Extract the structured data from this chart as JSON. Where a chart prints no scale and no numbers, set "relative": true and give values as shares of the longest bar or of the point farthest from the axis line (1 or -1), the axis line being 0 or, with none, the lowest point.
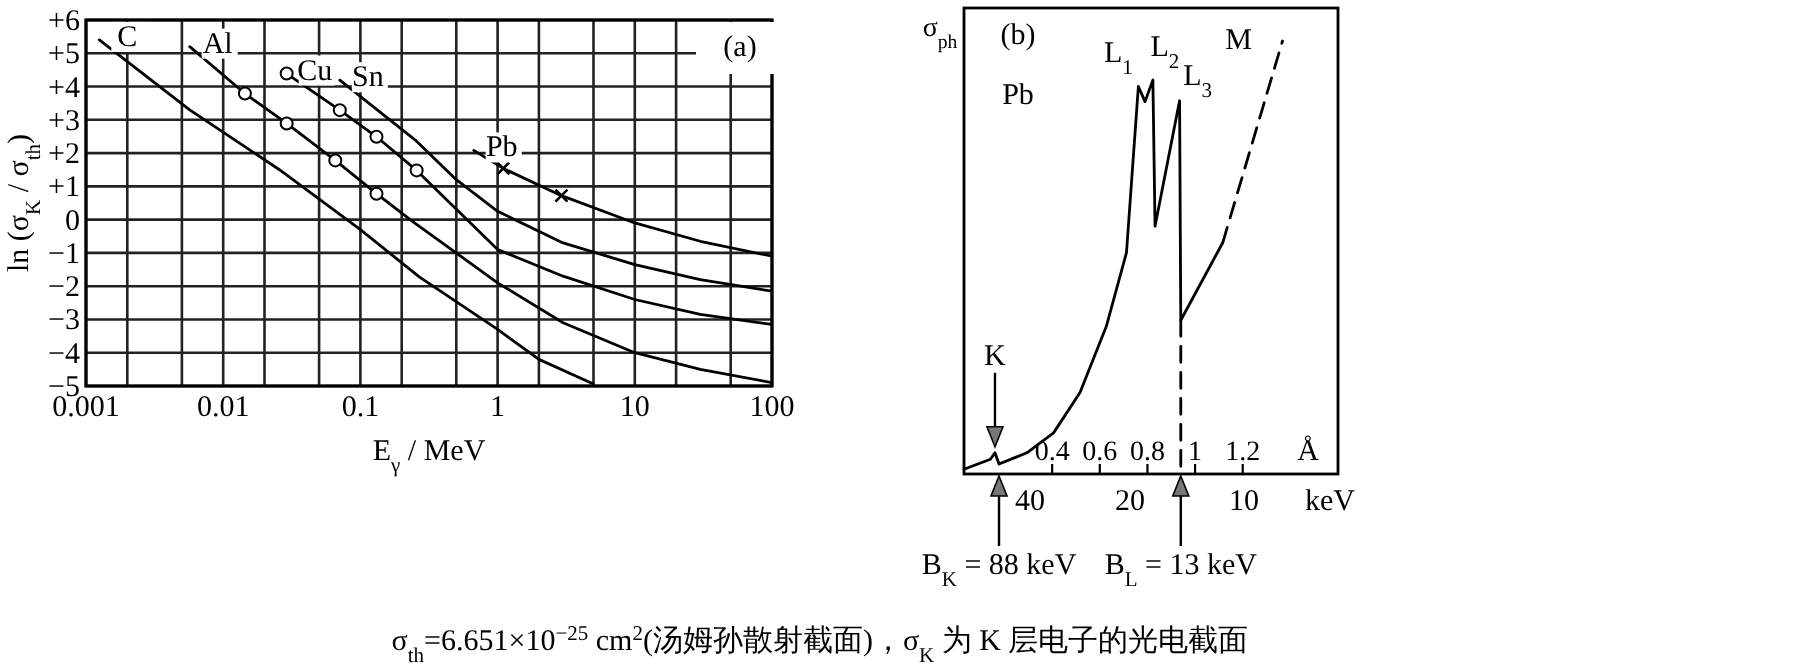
{
  "chart_data": [
    {
      "type": "line",
      "xlabel": "E$_{γ}$ / MeV",
      "ylabel": "ln (σ$_{K}$ / σ$_{th}$)",
      "log": "x",
      "grid": true,
      "xlim": [
        0.001,
        100
      ],
      "ylim": [
        -5,
        6
      ],
      "xticks": [
        0.001,
        {
          "value": 0.002,
          "label": null
        },
        {
          "value": 0.005,
          "label": null
        },
        0.01,
        {
          "value": 0.02,
          "label": null
        },
        {
          "value": 0.05,
          "label": null
        },
        0.1,
        {
          "value": 0.2,
          "label": null
        },
        {
          "value": 0.5,
          "label": null
        },
        1,
        {
          "value": 2,
          "label": null
        },
        {
          "value": 5,
          "label": null
        },
        10,
        {
          "value": 20,
          "label": null
        },
        {
          "value": 50,
          "label": null
        },
        100
      ],
      "yticks": [
        {
          "value": 6,
          "label": "+6"
        },
        {
          "value": 5,
          "label": "+5"
        },
        {
          "value": 4,
          "label": "+4"
        },
        {
          "value": 3,
          "label": "+3"
        },
        {
          "value": 2,
          "label": "+2"
        },
        {
          "value": 1,
          "label": "+1"
        },
        0,
        {
          "value": -1,
          "label": "−1"
        },
        {
          "value": -2,
          "label": "−2"
        },
        {
          "value": -3,
          "label": "−3"
        },
        {
          "value": -4,
          "label": "−4"
        },
        {
          "value": -5,
          "label": "−5"
        }
      ],
      "series": [
        {
          "name": "C",
          "color": "#000000",
          "marker": "none",
          "x": [
            0.00125,
            0.0057,
            0.0257,
            0.1,
            0.27,
            1,
            2,
            5
          ],
          "values": [
            5.4,
            3.3,
            1.5,
            -0.3,
            -1.73,
            -3.3,
            -4.2,
            -4.94
          ]
        },
        {
          "name": "Al",
          "color": "#000000",
          "marker": "none",
          "x": [
            0.0057,
            0.0144,
            0.029,
            0.0656,
            0.131,
            0.245,
            1,
            3,
            10,
            30,
            100
          ],
          "values": [
            5.2,
            3.79,
            2.89,
            1.78,
            0.78,
            -0.08,
            -1.9,
            -3.1,
            -4,
            -4.5,
            -4.9
          ]
        },
        {
          "name": "Cu",
          "color": "#000000",
          "marker": "none",
          "x": [
            0.029,
            0.0708,
            0.131,
            0.257,
            1,
            3,
            10,
            30,
            100
          ],
          "values": [
            4.39,
            3.29,
            2.49,
            1.48,
            -0.9,
            -1.7,
            -2.4,
            -2.85,
            -3.15
          ]
        },
        {
          "name": "Sn",
          "color": "#000000",
          "marker": "none",
          "x": [
            0.0708,
            0.25,
            0.5,
            1,
            3,
            10,
            30,
            100
          ],
          "values": [
            4.19,
            2.4,
            1.2,
            0.25,
            -0.7,
            -1.35,
            -1.8,
            -2.15
          ]
        },
        {
          "name": "Pb",
          "color": "#000000",
          "marker": "none",
          "x": [
            0.67,
            1.1,
            2.92,
            10,
            30,
            100
          ],
          "values": [
            2.08,
            1.54,
            0.72,
            -0.1,
            -0.65,
            -1.1
          ]
        },
        {
          "type": "scatter",
          "color": "#000000",
          "marker": "circle",
          "x": [
            0.0144,
            0.029,
            0.0656,
            0.131,
            0.029,
            0.0708,
            0.131,
            0.257
          ],
          "values": [
            3.79,
            2.89,
            1.78,
            0.78,
            4.39,
            3.29,
            2.49,
            1.48
          ]
        },
        {
          "type": "scatter",
          "color": "#000000",
          "marker": "cross",
          "x": [
            1.1,
            2.92
          ],
          "values": [
            1.54,
            0.72
          ]
        }
      ],
      "annotations": [
        "(a)",
        "σ$_{th}$=6.651×10$^{−25}$ cm$^{2}$(汤姆孙散射截面)，σ$_{K}$ 为 K 层电子的光电截面"
      ]
    },
    {
      "type": "line",
      "relative": true,
      "tick_labels": "x",
      "ylabel": "σ$_{ph}$",
      "xlabel": "Å",
      "xlim": [
        0.03,
        1.6
      ],
      "xticks": [
        0.4,
        0.6,
        0.8,
        1,
        1.2
      ],
      "series": [
        {
          "color": "#000000",
          "line_style": "solid",
          "x": [
            0.03,
            0.141,
            0.16,
            0.177,
            0.294,
            0.406,
            0.517,
            0.628,
            0.712,
            0.762,
            0.79,
            0.823,
            0.832,
            0.935,
            0.94,
            1.116
          ],
          "values": [
            0.011,
            0.034,
            0.049,
            0.023,
            0.049,
            0.095,
            0.188,
            0.342,
            0.511,
            0.895,
            0.86,
            0.91,
            0.572,
            0.862,
            0.355,
            0.534
          ]
        },
        {
          "color": "#000000",
          "line_style": "dashed",
          "x": [
            1.116,
            1.367
          ],
          "values": [
            0.534,
            1.0
          ]
        },
        {
          "color": "#000000",
          "line_style": "dashed",
          "x": [
            0.94,
            0.94
          ],
          "values": [
            0.355,
            0
          ]
        }
      ],
      "annotations": [
        "(b)",
        "Pb",
        {
          "text": "K",
          "x": 0.16,
          "y": 0.049
        },
        {
          "text": "L$_{1}$",
          "x": 0.762,
          "y": 0.895
        },
        {
          "text": "L$_{2}$",
          "x": 0.823,
          "y": 0.91
        },
        {
          "text": "L$_{3}$",
          "x": 0.935,
          "y": 0.862
        },
        {
          "text": "M",
          "x": 1.367,
          "y": 1.0
        },
        {
          "text": "B$_{K}$ = 88 keV",
          "x": 0.177,
          "y": 0
        },
        {
          "text": "B$_{L}$ = 13 keV",
          "x": 0.94,
          "y": 0
        },
        "40",
        "20",
        "10",
        "keV"
      ]
    }
  ]
}
